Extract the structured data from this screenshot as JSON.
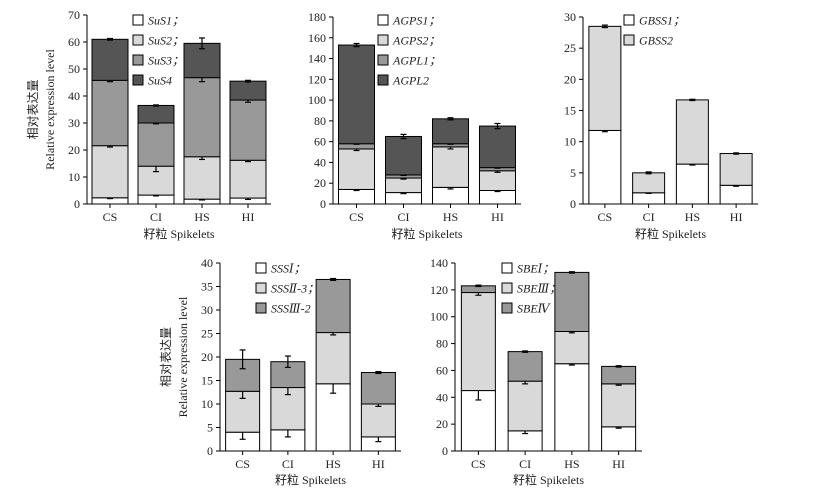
{
  "chart_data": [
    {
      "type": "bar",
      "stacked": true,
      "id": "sus",
      "categories": [
        "CS",
        "CI",
        "HS",
        "HI"
      ],
      "xlabel": "籽粒 Spikelets",
      "ylabel_cn": "相对表达量",
      "ylabel_en": "Relative expression level",
      "ylim": [
        0,
        70
      ],
      "yticks": [
        0,
        10,
        20,
        30,
        40,
        50,
        60,
        70
      ],
      "series": [
        {
          "name": "SuS1",
          "values": [
            2.3,
            3.3,
            1.8,
            2.2
          ],
          "errors": [
            0.3,
            0.3,
            0.3,
            0.5
          ],
          "color": "#ffffff"
        },
        {
          "name": "SuS2",
          "values": [
            19.3,
            10.7,
            15.7,
            14.0
          ],
          "errors": [
            0.5,
            2.0,
            1.0,
            0.5
          ],
          "color": "#d9d9d9"
        },
        {
          "name": "SuS3",
          "values": [
            24.2,
            16.0,
            29.3,
            22.3
          ],
          "errors": [
            0.5,
            0.3,
            1.5,
            0.8
          ],
          "color": "#999999"
        },
        {
          "name": "SuS4",
          "values": [
            15.2,
            6.5,
            12.7,
            7.0
          ],
          "errors": [
            0.3,
            0.2,
            2.0,
            0.3
          ],
          "color": "#555555"
        }
      ],
      "legend_labels": [
        "SuS1；",
        "SuS2；",
        "SuS3；",
        "SuS4"
      ]
    },
    {
      "type": "bar",
      "stacked": true,
      "id": "agp",
      "categories": [
        "CS",
        "CI",
        "HS",
        "HI"
      ],
      "xlabel": "籽粒 Spikelets",
      "ylim": [
        0,
        180
      ],
      "yticks": [
        0,
        20,
        40,
        60,
        80,
        100,
        120,
        140,
        160,
        180
      ],
      "series": [
        {
          "name": "AGPS1",
          "values": [
            14,
            11,
            16,
            13
          ],
          "errors": [
            1,
            1,
            1.5,
            1
          ],
          "color": "#ffffff"
        },
        {
          "name": "AGPS2",
          "values": [
            39,
            14,
            39,
            19
          ],
          "errors": [
            1.5,
            1,
            2,
            1.5
          ],
          "color": "#d9d9d9"
        },
        {
          "name": "AGPL1",
          "values": [
            5,
            3,
            3,
            3
          ],
          "errors": [
            0.5,
            0.5,
            0.5,
            0.5
          ],
          "color": "#999999"
        },
        {
          "name": "AGPL2",
          "values": [
            95,
            37,
            24,
            40
          ],
          "errors": [
            1.5,
            2,
            1,
            2.5
          ],
          "color": "#555555"
        }
      ],
      "legend_labels": [
        "AGPS1；",
        "AGPS2；",
        "AGPL1；",
        "AGPL2"
      ]
    },
    {
      "type": "bar",
      "stacked": true,
      "id": "gbss",
      "categories": [
        "CS",
        "CI",
        "HS",
        "HI"
      ],
      "xlabel": "籽粒 Spikelets",
      "ylim": [
        0,
        30
      ],
      "yticks": [
        0,
        5,
        10,
        15,
        20,
        25,
        30
      ],
      "series": [
        {
          "name": "GBSS1",
          "values": [
            11.8,
            1.8,
            6.4,
            3.0
          ],
          "errors": [
            0.2,
            0.1,
            0.15,
            0.15
          ],
          "color": "#ffffff"
        },
        {
          "name": "GBSS2",
          "values": [
            16.7,
            3.2,
            10.3,
            5.1
          ],
          "errors": [
            0.2,
            0.15,
            0.1,
            0.1
          ],
          "color": "#d9d9d9"
        }
      ],
      "legend_labels": [
        "GBSS1；",
        "GBSS2"
      ]
    },
    {
      "type": "bar",
      "stacked": true,
      "id": "sss",
      "categories": [
        "CS",
        "CI",
        "HS",
        "HI"
      ],
      "xlabel": "籽粒 Spikelets",
      "ylabel_cn": "相对表达量",
      "ylabel_en": "Relative expression level",
      "ylim": [
        0,
        40
      ],
      "yticks": [
        0,
        5,
        10,
        15,
        20,
        25,
        30,
        35,
        40
      ],
      "series": [
        {
          "name": "SSSI",
          "values": [
            4.0,
            4.5,
            14.3,
            3.0
          ],
          "errors": [
            1.5,
            1.5,
            2.0,
            1.0
          ],
          "color": "#ffffff"
        },
        {
          "name": "SSSII-3",
          "values": [
            8.7,
            9.0,
            10.9,
            7.0
          ],
          "errors": [
            1.5,
            1.5,
            0.5,
            0.5
          ],
          "color": "#d9d9d9"
        },
        {
          "name": "SSSIII-2",
          "values": [
            6.8,
            5.5,
            11.3,
            6.7
          ],
          "errors": [
            2.0,
            1.2,
            0.2,
            0.2
          ],
          "color": "#999999"
        }
      ],
      "legend_labels": [
        "SSSⅠ；",
        "SSSⅡ-3；",
        "SSSⅢ-2"
      ]
    },
    {
      "type": "bar",
      "stacked": true,
      "id": "sbe",
      "categories": [
        "CS",
        "CI",
        "HS",
        "HI"
      ],
      "xlabel": "籽粒 Spikelets",
      "ylim": [
        0,
        140
      ],
      "yticks": [
        0,
        20,
        40,
        60,
        80,
        100,
        120,
        140
      ],
      "series": [
        {
          "name": "SBEI",
          "values": [
            45,
            15,
            65,
            18
          ],
          "errors": [
            7,
            2,
            1,
            1
          ],
          "color": "#ffffff"
        },
        {
          "name": "SBEIII",
          "values": [
            73,
            37,
            24,
            32
          ],
          "errors": [
            2,
            2,
            1,
            1
          ],
          "color": "#d9d9d9"
        },
        {
          "name": "SBEIV",
          "values": [
            5,
            22,
            44,
            13
          ],
          "errors": [
            0.5,
            0.5,
            0.5,
            0.5
          ],
          "color": "#999999"
        }
      ],
      "legend_labels": [
        "SBEⅠ；",
        "SBEⅢ；",
        "SBEⅣ"
      ]
    }
  ]
}
